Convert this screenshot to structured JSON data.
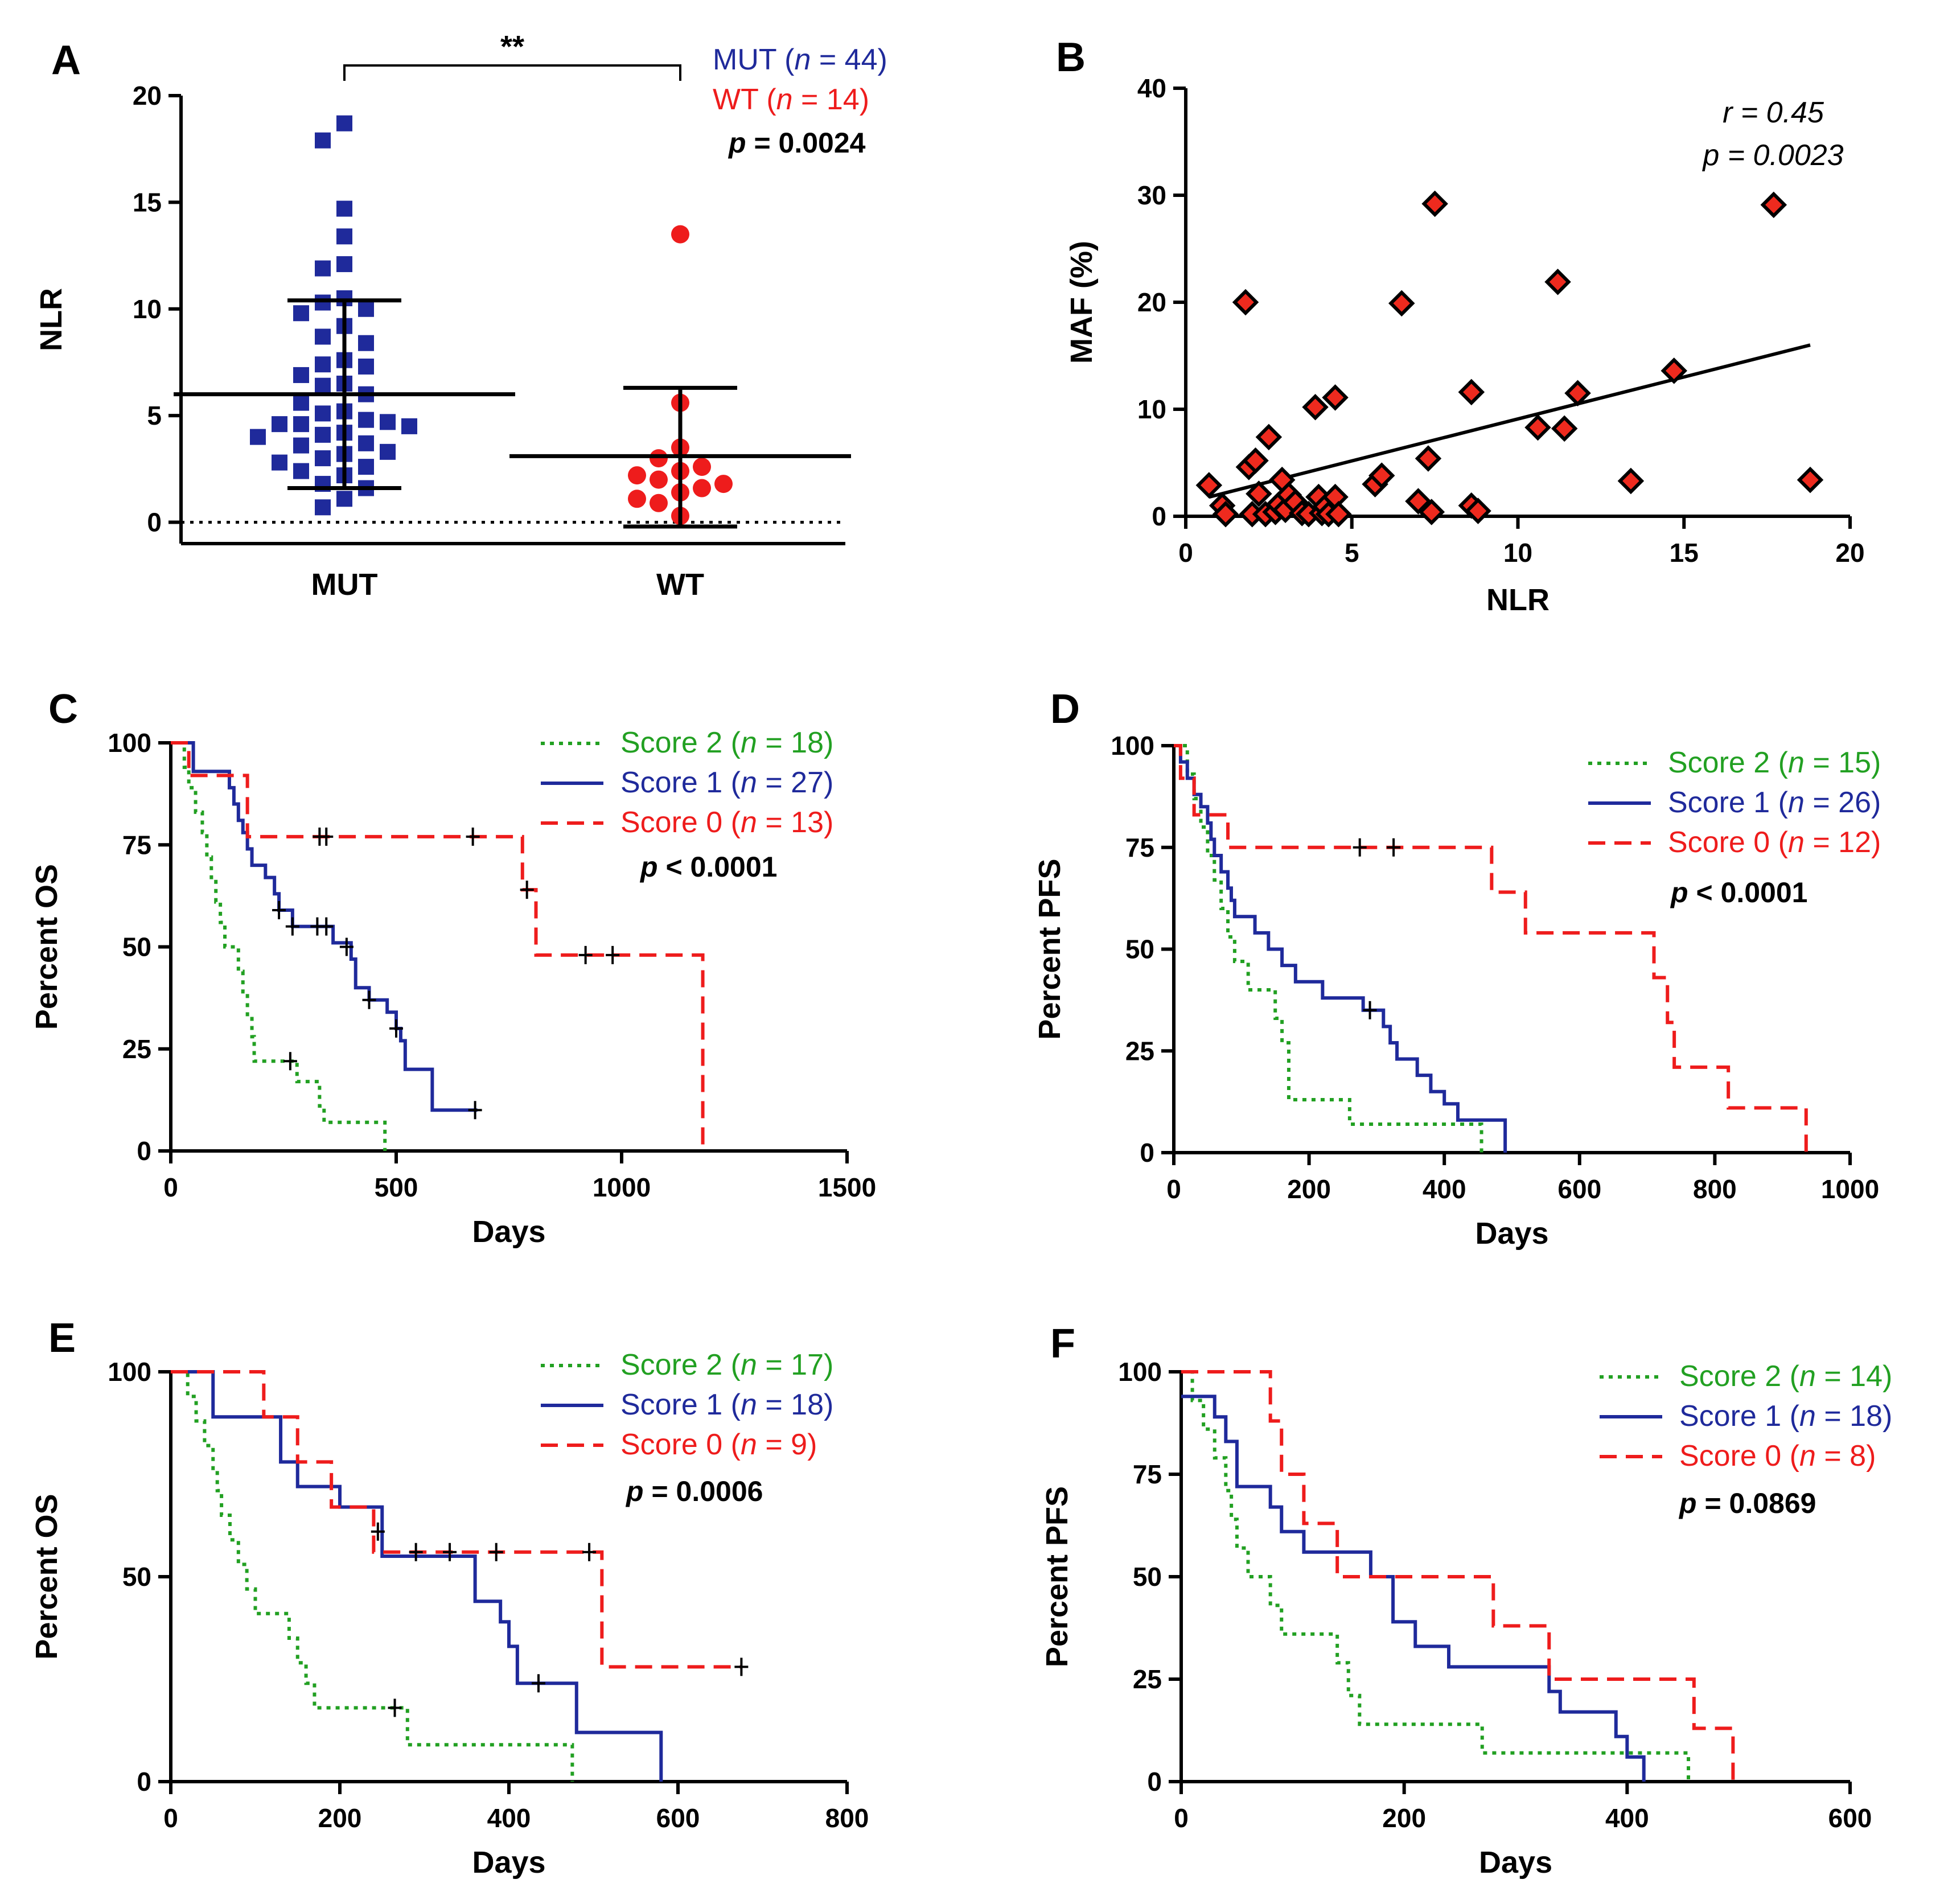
{
  "chart_data": [
    {
      "panel": "A",
      "type": "scatter",
      "xlabel": "",
      "ylabel": "NLR",
      "ylim": [
        -1,
        20
      ],
      "yticks": [
        0,
        5,
        10,
        15,
        20
      ],
      "categories": [
        "MUT",
        "WT"
      ],
      "significance": "**",
      "legend": [
        {
          "label": "MUT (",
          "n_label": "n",
          "rest": " = 44)",
          "color": "#1f2a9b"
        },
        {
          "label": "WT (",
          "n_label": "n",
          "rest": " = 14)",
          "color": "#ee1c1c"
        }
      ],
      "p_label": "p",
      "p_rest": " = 0.0024",
      "series": [
        {
          "name": "MUT",
          "color": "#1f2a9b",
          "mean": 6.0,
          "sd_low": 1.6,
          "sd_high": 10.4,
          "values": [
            18.7,
            17.9,
            14.7,
            13.4,
            12.1,
            11.9,
            10.5,
            10.3,
            10.0,
            9.8,
            9.2,
            8.7,
            8.4,
            7.6,
            7.4,
            7.3,
            6.9,
            6.5,
            6.4,
            6.0,
            5.6,
            5.2,
            5.1,
            4.8,
            4.7,
            4.6,
            4.6,
            4.5,
            4.2,
            4.1,
            4.0,
            3.7,
            3.6,
            3.3,
            3.2,
            3.0,
            2.8,
            2.6,
            2.4,
            2.2,
            1.8,
            1.6,
            1.1,
            0.7
          ]
        },
        {
          "name": "WT",
          "color": "#ee1c1c",
          "mean": 3.1,
          "sd_low": -0.2,
          "sd_high": 6.3,
          "values": [
            13.5,
            5.6,
            3.5,
            3.0,
            2.6,
            2.4,
            2.2,
            2.0,
            1.8,
            1.6,
            1.4,
            1.1,
            0.9,
            0.3
          ]
        }
      ]
    },
    {
      "panel": "B",
      "type": "scatter",
      "xlabel": "NLR",
      "ylabel": "MAF (%)",
      "xlim": [
        0,
        20
      ],
      "ylim": [
        0,
        40
      ],
      "xticks": [
        0,
        5,
        10,
        15,
        20
      ],
      "yticks": [
        0,
        10,
        20,
        30,
        40
      ],
      "r_label": "r = 0.45",
      "p_label": "p = 0.0023",
      "fit_line": {
        "x1": 0.7,
        "y1": 1.8,
        "x2": 18.8,
        "y2": 16.0
      },
      "points": [
        [
          0.7,
          2.9
        ],
        [
          1.1,
          1.0
        ],
        [
          1.2,
          0.2
        ],
        [
          1.8,
          20.0
        ],
        [
          1.9,
          4.6
        ],
        [
          2.0,
          0.2
        ],
        [
          2.1,
          5.2
        ],
        [
          2.2,
          2.1
        ],
        [
          2.4,
          0.2
        ],
        [
          2.5,
          7.4
        ],
        [
          2.7,
          0.4
        ],
        [
          2.8,
          1.1
        ],
        [
          2.9,
          3.4
        ],
        [
          3.0,
          0.6
        ],
        [
          3.1,
          2.0
        ],
        [
          3.3,
          1.3
        ],
        [
          3.5,
          0.3
        ],
        [
          3.7,
          0.2
        ],
        [
          3.9,
          10.2
        ],
        [
          4.0,
          1.8
        ],
        [
          4.1,
          0.3
        ],
        [
          4.2,
          0.9
        ],
        [
          4.3,
          0.2
        ],
        [
          4.5,
          11.1
        ],
        [
          4.5,
          1.8
        ],
        [
          4.6,
          0.2
        ],
        [
          5.7,
          3.0
        ],
        [
          5.9,
          3.8
        ],
        [
          6.5,
          19.9
        ],
        [
          7.0,
          1.4
        ],
        [
          7.3,
          5.4
        ],
        [
          7.4,
          0.4
        ],
        [
          7.5,
          29.2
        ],
        [
          8.6,
          1.0
        ],
        [
          8.6,
          11.6
        ],
        [
          8.8,
          0.5
        ],
        [
          10.6,
          8.3
        ],
        [
          11.2,
          21.9
        ],
        [
          11.4,
          8.2
        ],
        [
          11.8,
          11.5
        ],
        [
          13.4,
          3.3
        ],
        [
          14.7,
          13.6
        ],
        [
          17.7,
          29.1
        ],
        [
          18.8,
          3.4
        ]
      ]
    },
    {
      "panel": "C",
      "type": "line",
      "xlabel": "Days",
      "ylabel": "Percent OS",
      "xlim": [
        0,
        1500
      ],
      "ylim": [
        0,
        100
      ],
      "xticks": [
        0,
        500,
        1000,
        1500
      ],
      "yticks": [
        0,
        25,
        50,
        75,
        100
      ],
      "p_label": "p",
      "p_rest": " < 0.0001",
      "series": [
        {
          "name": "Score 2",
          "n": "18",
          "color": "#22a022",
          "dash": "dotted",
          "x": [
            0,
            20,
            30,
            40,
            55,
            70,
            80,
            90,
            100,
            110,
            120,
            135,
            150,
            160,
            170,
            180,
            185,
            200,
            220,
            240,
            260,
            280,
            300,
            320,
            330,
            340,
            360,
            380,
            400,
            420,
            440,
            460,
            470,
            475
          ],
          "y": [
            100,
            100,
            94,
            89,
            83,
            78,
            72,
            67,
            61,
            56,
            50,
            50,
            44,
            39,
            33,
            28,
            22,
            22,
            22,
            22,
            22,
            17,
            17,
            17,
            11,
            7,
            7,
            7,
            7,
            7,
            7,
            7,
            7,
            0
          ],
          "censor": [
            [
              265,
              22
            ]
          ]
        },
        {
          "name": "Score 1",
          "n": "27",
          "color": "#1f2a9b",
          "dash": "solid",
          "x": [
            0,
            40,
            50,
            120,
            130,
            140,
            150,
            160,
            170,
            180,
            200,
            210,
            230,
            240,
            270,
            290,
            320,
            340,
            360,
            380,
            400,
            410,
            440,
            460,
            480,
            500,
            510,
            520,
            580,
            680
          ],
          "y": [
            100,
            100,
            93,
            93,
            89,
            85,
            81,
            78,
            74,
            70,
            70,
            67,
            63,
            59,
            55,
            55,
            55,
            55,
            51,
            51,
            47,
            40,
            37,
            37,
            34,
            30,
            27,
            20,
            10,
            10
          ],
          "censor": [
            [
              240,
              59
            ],
            [
              270,
              55
            ],
            [
              325,
              55
            ],
            [
              345,
              55
            ],
            [
              390,
              50
            ],
            [
              440,
              37
            ],
            [
              500,
              30
            ],
            [
              675,
              10
            ]
          ]
        },
        {
          "name": "Score 0",
          "n": "13",
          "color": "#ee1c1c",
          "dash": "dashed",
          "x": [
            0,
            20,
            40,
            150,
            170,
            740,
            750,
            780,
            800,
            810,
            1170,
            1180
          ],
          "y": [
            100,
            100,
            92,
            92,
            77,
            77,
            77,
            64,
            64,
            48,
            48,
            0
          ],
          "censor": [
            [
              330,
              77
            ],
            [
              345,
              77
            ],
            [
              670,
              77
            ],
            [
              790,
              64
            ],
            [
              920,
              48
            ],
            [
              980,
              48
            ]
          ]
        }
      ]
    },
    {
      "panel": "D",
      "type": "line",
      "xlabel": "Days",
      "ylabel": "Percent PFS",
      "xlim": [
        0,
        1000
      ],
      "ylim": [
        0,
        100
      ],
      "xticks": [
        0,
        200,
        400,
        600,
        800,
        1000
      ],
      "yticks": [
        0,
        25,
        50,
        75,
        100
      ],
      "p_label": "p",
      "p_rest": " < 0.0001",
      "series": [
        {
          "name": "Score 2",
          "n": "15",
          "color": "#22a022",
          "dash": "dotted",
          "x": [
            0,
            10,
            20,
            30,
            40,
            50,
            60,
            70,
            80,
            90,
            110,
            150,
            160,
            170,
            190,
            250,
            260,
            280,
            450,
            455
          ],
          "y": [
            100,
            100,
            93,
            87,
            80,
            73,
            67,
            60,
            53,
            47,
            40,
            33,
            27,
            13,
            13,
            13,
            7,
            7,
            7,
            0
          ],
          "censor": []
        },
        {
          "name": "Score 1",
          "n": "26",
          "color": "#1f2a9b",
          "dash": "solid",
          "x": [
            0,
            10,
            20,
            30,
            40,
            50,
            55,
            60,
            70,
            80,
            85,
            90,
            100,
            120,
            140,
            160,
            180,
            200,
            220,
            250,
            280,
            300,
            310,
            320,
            330,
            340,
            360,
            380,
            400,
            420,
            460,
            490
          ],
          "y": [
            100,
            96,
            92,
            88,
            85,
            81,
            77,
            73,
            69,
            65,
            62,
            58,
            58,
            54,
            50,
            46,
            42,
            42,
            38,
            38,
            35,
            35,
            31,
            27,
            23,
            23,
            19,
            15,
            12,
            8,
            8,
            0
          ],
          "censor": [
            [
              290,
              35
            ]
          ]
        },
        {
          "name": "Score 0",
          "n": "12",
          "color": "#ee1c1c",
          "dash": "dashed",
          "x": [
            0,
            10,
            30,
            80,
            460,
            470,
            520,
            690,
            710,
            730,
            740,
            810,
            820,
            930,
            935
          ],
          "y": [
            100,
            92,
            83,
            75,
            75,
            64,
            54,
            54,
            43,
            32,
            21,
            21,
            11,
            11,
            0
          ],
          "censor": [
            [
              275,
              75
            ],
            [
              325,
              75
            ]
          ]
        }
      ]
    },
    {
      "panel": "E",
      "type": "line",
      "xlabel": "Days",
      "ylabel": "Percent OS",
      "xlim": [
        0,
        800
      ],
      "ylim": [
        0,
        100
      ],
      "xticks": [
        0,
        200,
        400,
        600,
        800
      ],
      "yticks": [
        0,
        50,
        100
      ],
      "p_label": "p",
      "p_rest": " = 0.0006",
      "series": [
        {
          "name": "Score 2",
          "n": "17",
          "color": "#22a022",
          "dash": "dotted",
          "x": [
            0,
            10,
            20,
            30,
            40,
            50,
            55,
            60,
            70,
            80,
            90,
            100,
            120,
            140,
            150,
            160,
            170,
            180,
            190,
            200,
            260,
            280,
            470,
            475
          ],
          "y": [
            100,
            100,
            94,
            88,
            82,
            76,
            71,
            65,
            59,
            53,
            47,
            41,
            41,
            35,
            29,
            24,
            18,
            18,
            18,
            18,
            18,
            9,
            9,
            0
          ],
          "censor": [
            [
              265,
              18
            ]
          ]
        },
        {
          "name": "Score 1",
          "n": "18",
          "color": "#1f2a9b",
          "dash": "solid",
          "x": [
            0,
            40,
            50,
            120,
            130,
            150,
            180,
            200,
            240,
            250,
            340,
            360,
            390,
            400,
            410,
            470,
            480,
            580
          ],
          "y": [
            100,
            100,
            89,
            89,
            78,
            72,
            72,
            67,
            67,
            55,
            55,
            44,
            39,
            33,
            24,
            24,
            12,
            0
          ],
          "censor": [
            [
              245,
              61
            ],
            [
              435,
              24
            ]
          ]
        },
        {
          "name": "Score 0",
          "n": "9",
          "color": "#ee1c1c",
          "dash": "dashed",
          "x": [
            0,
            100,
            110,
            140,
            150,
            190,
            240,
            500,
            510,
            675
          ],
          "y": [
            100,
            100,
            89,
            89,
            78,
            67,
            56,
            56,
            28,
            28
          ],
          "censor": [
            [
              290,
              56
            ],
            [
              330,
              56
            ],
            [
              385,
              56
            ],
            [
              495,
              56
            ],
            [
              675,
              28
            ]
          ]
        }
      ]
    },
    {
      "panel": "F",
      "type": "line",
      "xlabel": "Days",
      "ylabel": "Percent PFS",
      "xlim": [
        0,
        600
      ],
      "ylim": [
        0,
        100
      ],
      "xticks": [
        0,
        200,
        400,
        600
      ],
      "yticks": [
        0,
        25,
        50,
        75,
        100
      ],
      "p_label": "p",
      "p_rest": " = 0.0869",
      "series": [
        {
          "name": "Score 2",
          "n": "14",
          "color": "#22a022",
          "dash": "dotted",
          "x": [
            0,
            10,
            20,
            30,
            40,
            45,
            50,
            60,
            80,
            90,
            140,
            150,
            160,
            175,
            260,
            270,
            450,
            455
          ],
          "y": [
            100,
            93,
            86,
            79,
            71,
            64,
            57,
            50,
            43,
            36,
            29,
            21,
            14,
            14,
            14,
            7,
            7,
            0
          ],
          "censor": []
        },
        {
          "name": "Score 1",
          "n": "18",
          "color": "#1f2a9b",
          "dash": "solid",
          "x": [
            0,
            10,
            30,
            40,
            50,
            70,
            80,
            90,
            110,
            140,
            170,
            190,
            210,
            240,
            270,
            300,
            330,
            340,
            390,
            400,
            415
          ],
          "y": [
            94,
            94,
            89,
            83,
            72,
            72,
            67,
            61,
            56,
            56,
            50,
            39,
            33,
            28,
            28,
            28,
            22,
            17,
            11,
            6,
            0
          ],
          "censor": []
        },
        {
          "name": "Score 0",
          "n": "8",
          "color": "#ee1c1c",
          "dash": "dashed",
          "x": [
            0,
            70,
            80,
            90,
            110,
            140,
            160,
            270,
            280,
            320,
            330,
            450,
            460,
            490,
            495
          ],
          "y": [
            100,
            100,
            88,
            75,
            63,
            50,
            50,
            50,
            38,
            38,
            25,
            25,
            13,
            13,
            0
          ],
          "censor": []
        }
      ]
    }
  ]
}
